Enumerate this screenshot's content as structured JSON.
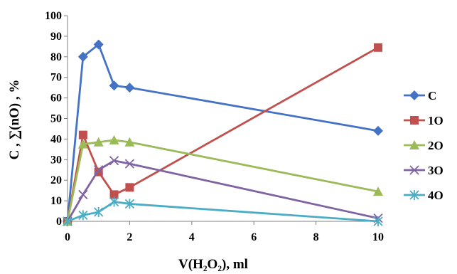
{
  "chart_data": {
    "type": "line",
    "xlabel": "V(H₂O₂), ml",
    "ylabel": "C , ∑(nO) , %",
    "xlim": [
      0,
      10
    ],
    "ylim": [
      0,
      100
    ],
    "xticks": [
      "0",
      "2",
      "4",
      "6",
      "8",
      "10"
    ],
    "yticks": [
      "0",
      "10",
      "20",
      "30",
      "40",
      "50",
      "60",
      "70",
      "80",
      "90",
      "100"
    ],
    "grid": false,
    "legend_position": "right",
    "series": [
      {
        "name": "C",
        "color": "#4472C4",
        "marker": "diamond",
        "x": [
          0,
          0.5,
          1.0,
          1.5,
          2.0,
          10
        ],
        "y": [
          0,
          80,
          86,
          66,
          65,
          44
        ]
      },
      {
        "name": "1O",
        "color": "#C0504D",
        "marker": "square",
        "x": [
          0,
          0.5,
          1.0,
          1.5,
          2.0,
          10
        ],
        "y": [
          0,
          42,
          24,
          13,
          16.5,
          84.5
        ]
      },
      {
        "name": "2O",
        "color": "#9BBB59",
        "marker": "triangle",
        "x": [
          0,
          0.5,
          1.0,
          1.5,
          2.0,
          10
        ],
        "y": [
          0,
          37.5,
          38.5,
          39.5,
          38.5,
          14.5
        ]
      },
      {
        "name": "3O",
        "color": "#8064A2",
        "marker": "x",
        "x": [
          0,
          0.5,
          1.0,
          1.5,
          2.0,
          10
        ],
        "y": [
          0,
          13,
          25,
          29.5,
          28,
          1.5
        ]
      },
      {
        "name": "4O",
        "color": "#4BACC6",
        "marker": "star",
        "x": [
          0,
          0.5,
          1.0,
          1.5,
          2.0,
          10
        ],
        "y": [
          0,
          3,
          4.5,
          9.5,
          8.5,
          0
        ]
      }
    ]
  }
}
